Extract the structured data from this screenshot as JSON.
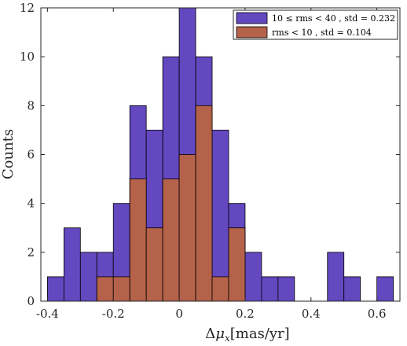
{
  "chart_data": {
    "type": "bar",
    "subtype": "overlaid-histogram",
    "title": "",
    "xlabel": "Δμ_x [mas/yr]",
    "xlabel_parts": {
      "prefix": "Δ",
      "symbol": "μ",
      "subscript": "x",
      "unit": "[mas/yr]"
    },
    "ylabel": "Counts",
    "xlim": [
      -0.42,
      0.67
    ],
    "ylim": [
      0,
      12
    ],
    "xticks": [
      -0.4,
      -0.2,
      0,
      0.2,
      0.4,
      0.6
    ],
    "xtick_labels": [
      "-0.4",
      "-0.2",
      "0",
      "0.2",
      "0.4",
      "0.6"
    ],
    "yticks": [
      0,
      2,
      4,
      6,
      8,
      10,
      12
    ],
    "ytick_labels": [
      "0",
      "2",
      "4",
      "6",
      "8",
      "10",
      "12"
    ],
    "grid": false,
    "legend_position": "top-right",
    "bin_edges": [
      -0.4,
      -0.35,
      -0.3,
      -0.25,
      -0.2,
      -0.15,
      -0.1,
      -0.05,
      0.0,
      0.05,
      0.1,
      0.15,
      0.2,
      0.25,
      0.3,
      0.35,
      0.4,
      0.45,
      0.5,
      0.55,
      0.6,
      0.65
    ],
    "series": [
      {
        "name": "10 ≤ rms < 40 , std = 0.232",
        "color": "#6448c0",
        "values": [
          1,
          3,
          2,
          2,
          4,
          8,
          7,
          10,
          12,
          10,
          7,
          4,
          2,
          1,
          1,
          0,
          0,
          2,
          1,
          0,
          1
        ]
      },
      {
        "name": "rms < 10 , std = 0.104",
        "color": "#b5624a",
        "values": [
          0,
          0,
          0,
          1,
          1,
          5,
          3,
          5,
          6,
          8,
          1,
          3,
          0,
          0,
          0,
          0,
          0,
          0,
          0,
          0,
          0
        ]
      }
    ]
  }
}
